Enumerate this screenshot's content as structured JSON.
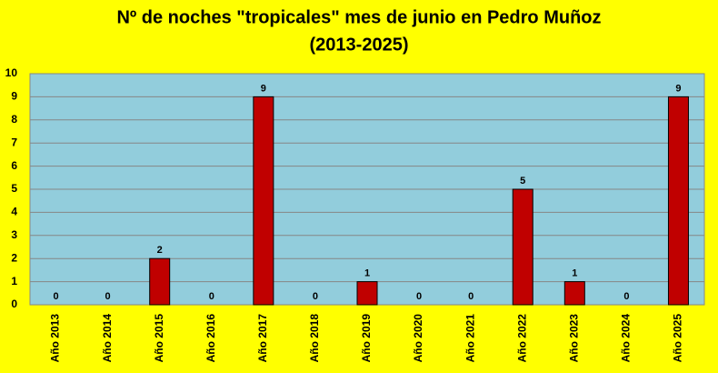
{
  "chart_data": {
    "type": "bar",
    "title": "Nº de noches \"tropicales\" mes de junio en Pedro Muñoz",
    "subtitle": "(2013-2025)",
    "categories": [
      "Año 2013",
      "Año 2014",
      "Año 2015",
      "Año 2016",
      "Año 2017",
      "Año 2018",
      "Año 2019",
      "Año 2020",
      "Año 2021",
      "Año 2022",
      "Año 2023",
      "Año 2024",
      "Año 2025"
    ],
    "values": [
      0,
      0,
      2,
      0,
      9,
      0,
      1,
      0,
      0,
      5,
      1,
      0,
      9
    ],
    "color": "#c00000",
    "ylim": [
      0,
      10
    ],
    "yticks": [
      0,
      1,
      2,
      3,
      4,
      5,
      6,
      7,
      8,
      9,
      10
    ],
    "grid": true
  }
}
